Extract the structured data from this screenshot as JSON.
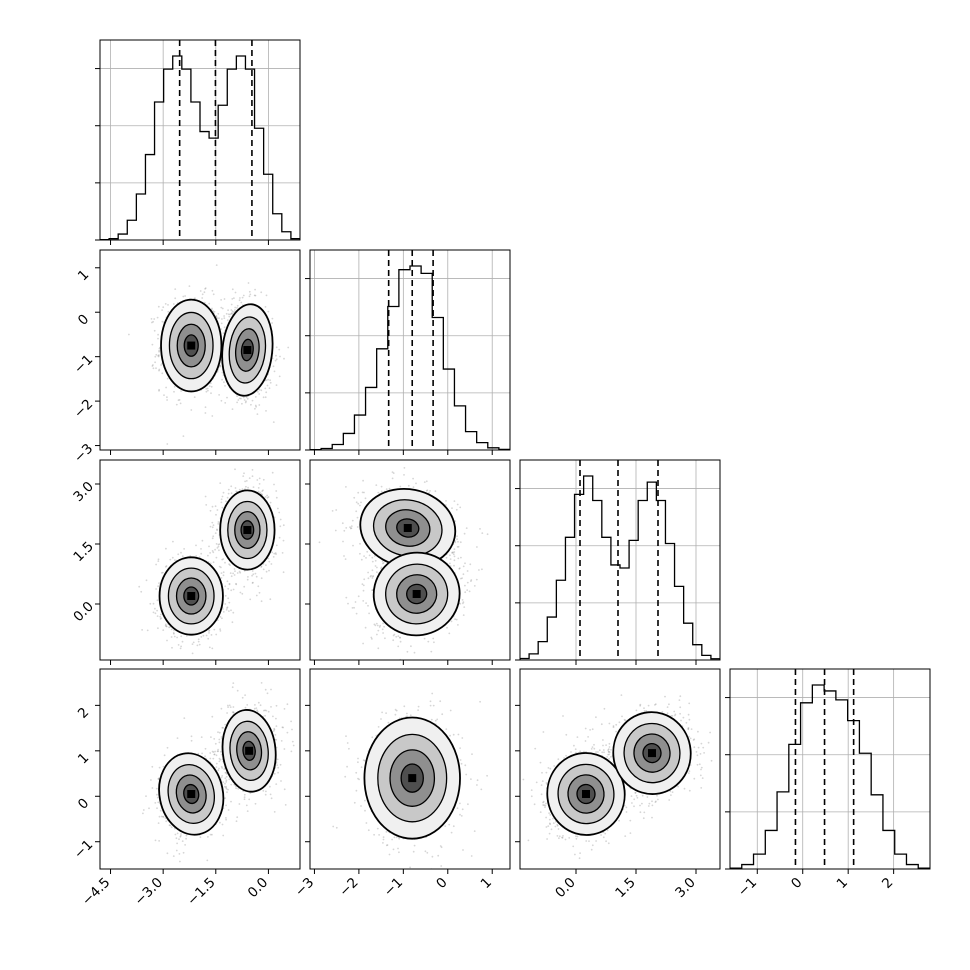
{
  "chart_data": {
    "type": "corner",
    "grid": true,
    "quantile_lines": "dashed",
    "variables": [
      {
        "ticks": [
          "−4.5",
          "−3.0",
          "−1.5",
          "0.0"
        ],
        "quantiles": [
          -2.53,
          -1.51,
          -0.47
        ],
        "range": [
          -4.8,
          0.9
        ],
        "hist": [
          0.001,
          0.004,
          0.018,
          0.06,
          0.14,
          0.26,
          0.42,
          0.52,
          0.56,
          0.52,
          0.42,
          0.33,
          0.31,
          0.41,
          0.52,
          0.56,
          0.52,
          0.34,
          0.2,
          0.08,
          0.025,
          0.004
        ],
        "hist_ticks": [
          0.0,
          0.5,
          1.0
        ]
      },
      {
        "ticks": [
          "−3",
          "−2",
          "−1",
          "0",
          "1"
        ],
        "quantiles": [
          -1.33,
          -0.8,
          -0.33
        ],
        "range": [
          -3.1,
          1.4
        ],
        "hist": [
          0.002,
          0.008,
          0.03,
          0.09,
          0.19,
          0.34,
          0.55,
          0.78,
          0.98,
          1.0,
          0.96,
          0.72,
          0.44,
          0.24,
          0.1,
          0.04,
          0.012,
          0.003
        ],
        "hist_ticks": [
          0.0,
          0.25,
          0.5,
          0.75,
          1.0
        ]
      },
      {
        "ticks": [
          "0.0",
          "1.5",
          "3.0"
        ],
        "quantiles": [
          0.1,
          1.05,
          2.05
        ],
        "range": [
          -1.4,
          3.6
        ],
        "hist": [
          0.005,
          0.02,
          0.06,
          0.14,
          0.26,
          0.4,
          0.54,
          0.6,
          0.52,
          0.4,
          0.31,
          0.3,
          0.39,
          0.52,
          0.58,
          0.52,
          0.38,
          0.24,
          0.12,
          0.05,
          0.015,
          0.004
        ],
        "hist_ticks": [
          0.0,
          0.2,
          0.4,
          0.6,
          0.8
        ]
      },
      {
        "ticks": [
          "−1",
          "0",
          "1",
          "2"
        ],
        "quantiles": [
          -0.16,
          0.48,
          1.12
        ],
        "range": [
          -1.6,
          2.8
        ],
        "hist": [
          0.003,
          0.015,
          0.05,
          0.13,
          0.26,
          0.42,
          0.56,
          0.62,
          0.6,
          0.57,
          0.5,
          0.39,
          0.25,
          0.13,
          0.05,
          0.015,
          0.003
        ],
        "hist_ticks": [
          0.0,
          0.5,
          1.0
        ]
      }
    ],
    "pairs": [
      {
        "x": 0,
        "y": 1,
        "modes": [
          {
            "x": -2.2,
            "y": -0.75,
            "sx": 0.4,
            "sy": 0.48,
            "rho": 0.0
          },
          {
            "x": -0.6,
            "y": -0.85,
            "sx": 0.33,
            "sy": 0.48,
            "rho": -0.1
          }
        ]
      },
      {
        "x": 0,
        "y": 2,
        "modes": [
          {
            "x": -2.2,
            "y": 0.2,
            "sx": 0.42,
            "sy": 0.45,
            "rho": 0.0
          },
          {
            "x": -0.6,
            "y": 1.85,
            "sx": 0.36,
            "sy": 0.46,
            "rho": 0.0
          }
        ]
      },
      {
        "x": 1,
        "y": 2,
        "modes": [
          {
            "x": -0.9,
            "y": 1.9,
            "sx": 0.5,
            "sy": 0.45,
            "rho": -0.2
          },
          {
            "x": -0.7,
            "y": 0.25,
            "sx": 0.45,
            "sy": 0.48,
            "rho": 0.15
          }
        ]
      },
      {
        "x": 0,
        "y": 3,
        "modes": [
          {
            "x": -2.2,
            "y": 0.05,
            "sx": 0.42,
            "sy": 0.42,
            "rho": 0.2
          },
          {
            "x": -0.55,
            "y": 1.0,
            "sx": 0.35,
            "sy": 0.42,
            "rho": 0.1
          }
        ]
      },
      {
        "x": 1,
        "y": 3,
        "modes": [
          {
            "x": -0.8,
            "y": 0.4,
            "sx": 0.5,
            "sy": 0.62,
            "rho": 0.0
          }
        ]
      },
      {
        "x": 2,
        "y": 3,
        "modes": [
          {
            "x": 0.25,
            "y": 0.05,
            "sx": 0.45,
            "sy": 0.42,
            "rho": 0.1
          },
          {
            "x": 1.9,
            "y": 0.95,
            "sx": 0.45,
            "sy": 0.42,
            "rho": 0.1
          }
        ]
      }
    ]
  }
}
